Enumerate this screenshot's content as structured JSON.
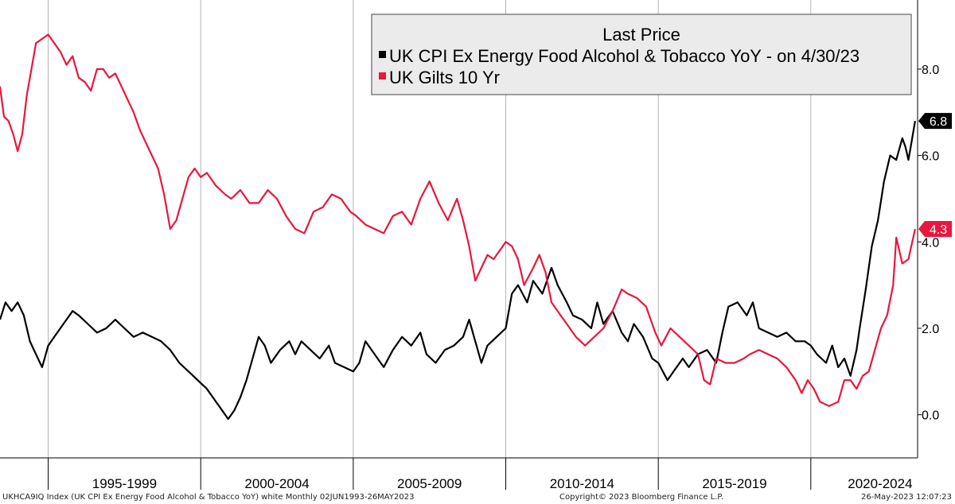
{
  "chart_data": {
    "type": "line",
    "legend": {
      "title": "Last Price",
      "placement": "top-right",
      "entries": [
        {
          "label": "UK CPI Ex Energy Food Alcohol & Tobacco YoY -  on 4/30/23",
          "color": "#000000"
        },
        {
          "label": "UK Gilts 10 Yr",
          "color": "#e8173d"
        }
      ]
    },
    "x_axis": {
      "range": [
        1993.42,
        2023.5
      ],
      "period_labels": [
        {
          "label": "1995-1999",
          "start": 1995,
          "end": 2000
        },
        {
          "label": "2000-2004",
          "start": 2000,
          "end": 2005
        },
        {
          "label": "2005-2009",
          "start": 2005,
          "end": 2010
        },
        {
          "label": "2010-2014",
          "start": 2010,
          "end": 2015
        },
        {
          "label": "2015-2019",
          "start": 2015,
          "end": 2020
        },
        {
          "label": "2020-2024",
          "start": 2020,
          "end": 2025
        }
      ]
    },
    "y_axis": {
      "position": "right",
      "range": [
        -1.0,
        9.6
      ],
      "ticks": [
        {
          "value": 0,
          "label": "0.0"
        },
        {
          "value": 2,
          "label": "2.0"
        },
        {
          "value": 4,
          "label": "4.0"
        },
        {
          "value": 6,
          "label": "6.0"
        },
        {
          "value": 8,
          "label": "8.0"
        }
      ]
    },
    "grid": {
      "vertical": true,
      "horizontal": false
    },
    "series": [
      {
        "name": "UK CPI Ex Energy Food Alcohol & Tobacco YoY -  on 4/30/23",
        "color": "#000000",
        "last_value": "6.8",
        "points": [
          [
            1993.42,
            2.2
          ],
          [
            1993.6,
            2.6
          ],
          [
            1993.8,
            2.4
          ],
          [
            1994.0,
            2.6
          ],
          [
            1994.2,
            2.3
          ],
          [
            1994.4,
            1.7
          ],
          [
            1994.6,
            1.4
          ],
          [
            1994.8,
            1.1
          ],
          [
            1995.0,
            1.6
          ],
          [
            1995.2,
            1.8
          ],
          [
            1995.5,
            2.1
          ],
          [
            1995.8,
            2.4
          ],
          [
            1996.0,
            2.3
          ],
          [
            1996.3,
            2.1
          ],
          [
            1996.6,
            1.9
          ],
          [
            1996.9,
            2.0
          ],
          [
            1997.2,
            2.2
          ],
          [
            1997.5,
            2.0
          ],
          [
            1997.8,
            1.8
          ],
          [
            1998.1,
            1.9
          ],
          [
            1998.4,
            1.8
          ],
          [
            1998.7,
            1.7
          ],
          [
            1999.0,
            1.5
          ],
          [
            1999.3,
            1.2
          ],
          [
            1999.6,
            1.0
          ],
          [
            1999.9,
            0.8
          ],
          [
            2000.2,
            0.6
          ],
          [
            2000.5,
            0.3
          ],
          [
            2000.7,
            0.1
          ],
          [
            2000.9,
            -0.1
          ],
          [
            2001.1,
            0.1
          ],
          [
            2001.3,
            0.4
          ],
          [
            2001.5,
            0.8
          ],
          [
            2001.7,
            1.3
          ],
          [
            2001.9,
            1.8
          ],
          [
            2002.1,
            1.6
          ],
          [
            2002.3,
            1.2
          ],
          [
            2002.6,
            1.5
          ],
          [
            2002.9,
            1.7
          ],
          [
            2003.1,
            1.4
          ],
          [
            2003.3,
            1.7
          ],
          [
            2003.6,
            1.5
          ],
          [
            2003.9,
            1.3
          ],
          [
            2004.2,
            1.6
          ],
          [
            2004.4,
            1.2
          ],
          [
            2004.7,
            1.1
          ],
          [
            2005.0,
            1.0
          ],
          [
            2005.2,
            1.2
          ],
          [
            2005.4,
            1.7
          ],
          [
            2005.7,
            1.4
          ],
          [
            2006.0,
            1.1
          ],
          [
            2006.3,
            1.5
          ],
          [
            2006.6,
            1.8
          ],
          [
            2006.9,
            1.6
          ],
          [
            2007.2,
            1.9
          ],
          [
            2007.4,
            1.4
          ],
          [
            2007.7,
            1.2
          ],
          [
            2008.0,
            1.5
          ],
          [
            2008.3,
            1.6
          ],
          [
            2008.6,
            1.8
          ],
          [
            2008.8,
            2.2
          ],
          [
            2009.0,
            1.7
          ],
          [
            2009.2,
            1.2
          ],
          [
            2009.4,
            1.6
          ],
          [
            2009.7,
            1.8
          ],
          [
            2010.0,
            2.0
          ],
          [
            2010.2,
            2.8
          ],
          [
            2010.4,
            3.0
          ],
          [
            2010.7,
            2.6
          ],
          [
            2010.9,
            3.1
          ],
          [
            2011.2,
            2.8
          ],
          [
            2011.5,
            3.4
          ],
          [
            2011.7,
            3.0
          ],
          [
            2012.0,
            2.6
          ],
          [
            2012.2,
            2.3
          ],
          [
            2012.5,
            2.2
          ],
          [
            2012.8,
            2.0
          ],
          [
            2013.0,
            2.6
          ],
          [
            2013.2,
            2.1
          ],
          [
            2013.5,
            2.4
          ],
          [
            2013.8,
            1.9
          ],
          [
            2014.0,
            1.7
          ],
          [
            2014.2,
            2.1
          ],
          [
            2014.5,
            1.8
          ],
          [
            2014.8,
            1.3
          ],
          [
            2015.0,
            1.2
          ],
          [
            2015.3,
            0.8
          ],
          [
            2015.5,
            1.0
          ],
          [
            2015.8,
            1.3
          ],
          [
            2016.0,
            1.1
          ],
          [
            2016.3,
            1.4
          ],
          [
            2016.6,
            1.5
          ],
          [
            2016.9,
            1.2
          ],
          [
            2017.1,
            1.9
          ],
          [
            2017.3,
            2.5
          ],
          [
            2017.6,
            2.6
          ],
          [
            2017.9,
            2.3
          ],
          [
            2018.1,
            2.6
          ],
          [
            2018.3,
            2.0
          ],
          [
            2018.6,
            1.9
          ],
          [
            2018.9,
            1.8
          ],
          [
            2019.2,
            1.9
          ],
          [
            2019.5,
            1.7
          ],
          [
            2019.8,
            1.7
          ],
          [
            2020.0,
            1.6
          ],
          [
            2020.2,
            1.4
          ],
          [
            2020.5,
            1.2
          ],
          [
            2020.7,
            1.6
          ],
          [
            2020.9,
            1.1
          ],
          [
            2021.1,
            1.3
          ],
          [
            2021.3,
            0.9
          ],
          [
            2021.5,
            1.5
          ],
          [
            2021.6,
            2.0
          ],
          [
            2021.8,
            2.9
          ],
          [
            2022.0,
            3.9
          ],
          [
            2022.2,
            4.5
          ],
          [
            2022.4,
            5.4
          ],
          [
            2022.6,
            6.0
          ],
          [
            2022.8,
            5.9
          ],
          [
            2023.0,
            6.4
          ],
          [
            2023.1,
            6.2
          ],
          [
            2023.2,
            5.9
          ],
          [
            2023.3,
            6.3
          ],
          [
            2023.42,
            6.8
          ]
        ]
      },
      {
        "name": "UK Gilts 10 Yr",
        "color": "#e8173d",
        "last_value": "4.3",
        "points": [
          [
            1993.42,
            7.6
          ],
          [
            1993.55,
            6.9
          ],
          [
            1993.7,
            6.8
          ],
          [
            1993.85,
            6.5
          ],
          [
            1994.0,
            6.1
          ],
          [
            1994.15,
            6.5
          ],
          [
            1994.3,
            7.4
          ],
          [
            1994.45,
            8.0
          ],
          [
            1994.6,
            8.6
          ],
          [
            1994.8,
            8.7
          ],
          [
            1995.0,
            8.8
          ],
          [
            1995.2,
            8.6
          ],
          [
            1995.4,
            8.4
          ],
          [
            1995.6,
            8.1
          ],
          [
            1995.8,
            8.3
          ],
          [
            1996.0,
            7.8
          ],
          [
            1996.2,
            7.7
          ],
          [
            1996.4,
            7.5
          ],
          [
            1996.6,
            8.0
          ],
          [
            1996.8,
            8.0
          ],
          [
            1997.0,
            7.8
          ],
          [
            1997.2,
            7.9
          ],
          [
            1997.4,
            7.6
          ],
          [
            1997.6,
            7.3
          ],
          [
            1997.8,
            7.0
          ],
          [
            1998.0,
            6.6
          ],
          [
            1998.2,
            6.3
          ],
          [
            1998.4,
            6.0
          ],
          [
            1998.6,
            5.7
          ],
          [
            1998.8,
            5.1
          ],
          [
            1999.0,
            4.3
          ],
          [
            1999.2,
            4.5
          ],
          [
            1999.4,
            5.0
          ],
          [
            1999.6,
            5.5
          ],
          [
            1999.8,
            5.7
          ],
          [
            2000.0,
            5.5
          ],
          [
            2000.2,
            5.6
          ],
          [
            2000.5,
            5.3
          ],
          [
            2000.8,
            5.1
          ],
          [
            2001.0,
            5.0
          ],
          [
            2001.3,
            5.2
          ],
          [
            2001.6,
            4.9
          ],
          [
            2001.9,
            4.9
          ],
          [
            2002.2,
            5.2
          ],
          [
            2002.5,
            5.0
          ],
          [
            2002.8,
            4.6
          ],
          [
            2003.1,
            4.3
          ],
          [
            2003.4,
            4.2
          ],
          [
            2003.7,
            4.7
          ],
          [
            2004.0,
            4.8
          ],
          [
            2004.3,
            5.1
          ],
          [
            2004.6,
            5.0
          ],
          [
            2004.9,
            4.7
          ],
          [
            2005.1,
            4.6
          ],
          [
            2005.4,
            4.4
          ],
          [
            2005.7,
            4.3
          ],
          [
            2006.0,
            4.2
          ],
          [
            2006.3,
            4.6
          ],
          [
            2006.6,
            4.7
          ],
          [
            2006.9,
            4.4
          ],
          [
            2007.2,
            5.0
          ],
          [
            2007.5,
            5.4
          ],
          [
            2007.8,
            4.9
          ],
          [
            2008.1,
            4.5
          ],
          [
            2008.4,
            5.0
          ],
          [
            2008.6,
            4.5
          ],
          [
            2008.8,
            3.9
          ],
          [
            2009.0,
            3.1
          ],
          [
            2009.2,
            3.4
          ],
          [
            2009.4,
            3.7
          ],
          [
            2009.6,
            3.6
          ],
          [
            2009.8,
            3.8
          ],
          [
            2010.0,
            4.0
          ],
          [
            2010.2,
            3.9
          ],
          [
            2010.4,
            3.6
          ],
          [
            2010.6,
            3.0
          ],
          [
            2010.9,
            3.4
          ],
          [
            2011.1,
            3.7
          ],
          [
            2011.3,
            3.3
          ],
          [
            2011.5,
            2.6
          ],
          [
            2011.8,
            2.3
          ],
          [
            2012.0,
            2.1
          ],
          [
            2012.3,
            1.8
          ],
          [
            2012.6,
            1.6
          ],
          [
            2012.9,
            1.8
          ],
          [
            2013.2,
            2.0
          ],
          [
            2013.5,
            2.4
          ],
          [
            2013.8,
            2.9
          ],
          [
            2014.0,
            2.8
          ],
          [
            2014.3,
            2.7
          ],
          [
            2014.6,
            2.5
          ],
          [
            2014.9,
            1.9
          ],
          [
            2015.1,
            1.6
          ],
          [
            2015.4,
            2.0
          ],
          [
            2015.7,
            1.8
          ],
          [
            2016.0,
            1.6
          ],
          [
            2016.3,
            1.4
          ],
          [
            2016.5,
            0.8
          ],
          [
            2016.7,
            0.7
          ],
          [
            2016.9,
            1.3
          ],
          [
            2017.2,
            1.2
          ],
          [
            2017.5,
            1.2
          ],
          [
            2017.8,
            1.3
          ],
          [
            2018.0,
            1.4
          ],
          [
            2018.3,
            1.5
          ],
          [
            2018.6,
            1.4
          ],
          [
            2018.9,
            1.3
          ],
          [
            2019.2,
            1.1
          ],
          [
            2019.5,
            0.8
          ],
          [
            2019.7,
            0.5
          ],
          [
            2019.9,
            0.8
          ],
          [
            2020.1,
            0.6
          ],
          [
            2020.3,
            0.3
          ],
          [
            2020.6,
            0.2
          ],
          [
            2020.9,
            0.3
          ],
          [
            2021.1,
            0.8
          ],
          [
            2021.3,
            0.8
          ],
          [
            2021.5,
            0.6
          ],
          [
            2021.7,
            0.9
          ],
          [
            2021.9,
            1.0
          ],
          [
            2022.1,
            1.5
          ],
          [
            2022.3,
            2.0
          ],
          [
            2022.5,
            2.3
          ],
          [
            2022.7,
            3.0
          ],
          [
            2022.8,
            4.1
          ],
          [
            2023.0,
            3.5
          ],
          [
            2023.2,
            3.6
          ],
          [
            2023.42,
            4.3
          ]
        ]
      }
    ]
  },
  "footer": {
    "left": "UKHCA9IQ Index (UK CPI Ex Energy Food Alcohol & Tobacco YoY) white  Monthly 02JUN1993-26MAY2023",
    "center": "Copyright© 2023 Bloomberg Finance L.P.",
    "right": "26-May-2023 12:07:23"
  }
}
